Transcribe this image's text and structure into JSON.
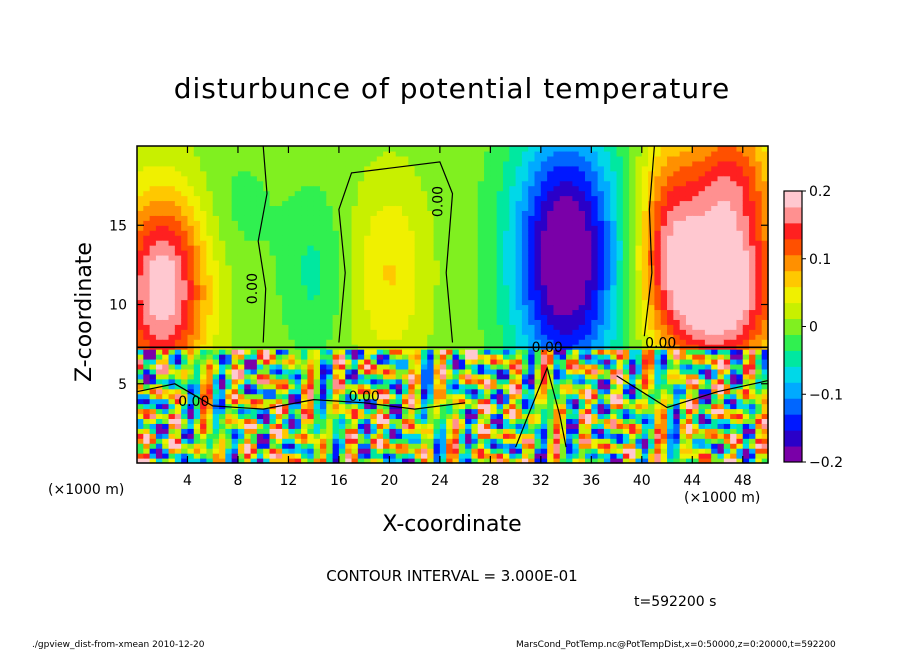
{
  "chart_data": {
    "type": "heatmap",
    "title": "disturbunce of potential temperature",
    "xlabel": "X-coordinate",
    "ylabel": "Z-coordinate",
    "x_unit_label": "(×1000 m)",
    "x_ticks": [
      4,
      8,
      12,
      16,
      20,
      24,
      28,
      32,
      36,
      40,
      44,
      48
    ],
    "y_ticks": [
      5,
      10,
      15
    ],
    "xlim": [
      0,
      50
    ],
    "ylim": [
      0,
      20
    ],
    "colorbar": {
      "ticks": [
        "0.2",
        "0.1",
        "0",
        "−0.1",
        "−0.2"
      ],
      "range": [
        -0.2,
        0.2
      ],
      "colors": [
        "#7a00a8",
        "#2a00c8",
        "#0018ff",
        "#0066ff",
        "#00aaff",
        "#00d8e8",
        "#00e8a0",
        "#30f050",
        "#80f020",
        "#c8f000",
        "#f0f000",
        "#ffc800",
        "#ff9000",
        "#ff5000",
        "#ff2020",
        "#ff9090",
        "#ffc8d0"
      ]
    },
    "contour_labels": [
      "0.00",
      "0.00",
      "0.00",
      "0.00",
      "0.00",
      "0.00"
    ],
    "contour_interval": "CONTOUR INTERVAL = 3.000E-01",
    "time": "t=592200 s",
    "fields": {
      "layer_top_z": 7.3,
      "upper_blobs": [
        {
          "x": 2,
          "z": 11,
          "sx": 3.5,
          "sz": 6,
          "v": 0.2
        },
        {
          "x": 20,
          "z": 12,
          "sx": 3,
          "sz": 6,
          "v": 0.06
        },
        {
          "x": 14,
          "z": 12,
          "sx": 2.5,
          "sz": 5,
          "v": -0.04
        },
        {
          "x": 34,
          "z": 13,
          "sx": 4.2,
          "sz": 8,
          "v": -0.22
        },
        {
          "x": 46,
          "z": 11,
          "sx": 4.5,
          "sz": 5,
          "v": 0.24
        },
        {
          "x": 47,
          "z": 18,
          "sx": 3.5,
          "sz": 4,
          "v": 0.12
        },
        {
          "x": 8,
          "z": 16,
          "sx": 3,
          "sz": 4,
          "v": -0.02
        },
        {
          "x": 42,
          "z": 15,
          "sx": 2.5,
          "sz": 6,
          "v": 0.1
        }
      ]
    }
  },
  "footer": {
    "left": "./gpview_dist-from-xmean  2010-12-20",
    "right": "MarsCond_PotTemp.nc@PotTempDist,x=0:50000,z=0:20000,t=592200"
  }
}
